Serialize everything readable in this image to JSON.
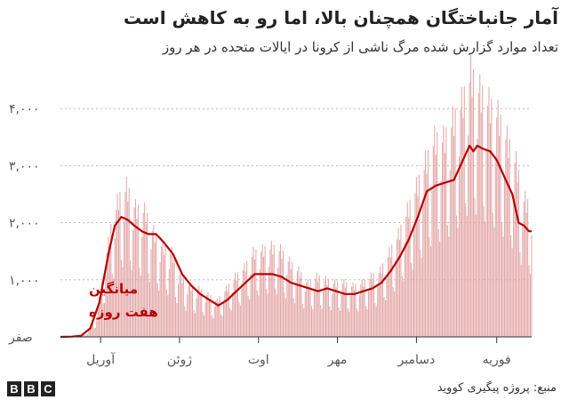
{
  "header": {
    "title": "آمار جانباختگان همچنان بالا، اما رو به کاهش است",
    "subtitle": "تعداد موارد گزارش شده مرگ ناشی از کرونا در ایالات متحده در هر روز"
  },
  "footer": {
    "source": "منبع: پروژه پیگیری کووید",
    "logo_letters": [
      "B",
      "B",
      "C"
    ]
  },
  "colors": {
    "bar": "#e4a8a8",
    "line": "#b80000",
    "grid": "#bbbbbb",
    "axis": "#333333",
    "annotation": "#b80000"
  },
  "chart_data": {
    "type": "bar",
    "title": "آمار جانباختگان همچنان بالا، اما رو به کاهش است",
    "subtitle": "تعداد موارد گزارش شده مرگ ناشی از کرونا در ایالات متحده در هر روز",
    "x_range": [
      "2020-03-01",
      "2021-02-28"
    ],
    "ylim": [
      0,
      4500
    ],
    "grid": true,
    "y_ticks": [
      {
        "value": 0,
        "label": "صفر"
      },
      {
        "value": 1000,
        "label": "۱,۰۰۰"
      },
      {
        "value": 2000,
        "label": "۲,۰۰۰"
      },
      {
        "value": 3000,
        "label": "۳,۰۰۰"
      },
      {
        "value": 4000,
        "label": "۴,۰۰۰"
      }
    ],
    "x_ticks": [
      {
        "date": "2020-04-01",
        "label": "آوریل"
      },
      {
        "date": "2020-06-01",
        "label": "ژوئن"
      },
      {
        "date": "2020-08-01",
        "label": "اوت"
      },
      {
        "date": "2020-10-01",
        "label": "مهر"
      },
      {
        "date": "2020-12-01",
        "label": "دسامبر"
      },
      {
        "date": "2021-02-01",
        "label": "فوریه"
      }
    ],
    "annotation": {
      "lines": [
        "میانگین",
        "هفت روزه"
      ],
      "series": "seven_day_average"
    },
    "series": [
      {
        "key": "daily",
        "kind": "bar",
        "points": [
          [
            "2020-03-01",
            0
          ],
          [
            "2020-03-15",
            10
          ],
          [
            "2020-03-22",
            60
          ],
          [
            "2020-03-29",
            350
          ],
          [
            "2020-04-05",
            1300
          ],
          [
            "2020-04-10",
            1950
          ],
          [
            "2020-04-15",
            2300
          ],
          [
            "2020-04-21",
            2500
          ],
          [
            "2020-04-28",
            2150
          ],
          [
            "2020-05-05",
            2100
          ],
          [
            "2020-05-12",
            1750
          ],
          [
            "2020-05-19",
            1500
          ],
          [
            "2020-05-26",
            1400
          ],
          [
            "2020-06-02",
            1000
          ],
          [
            "2020-06-09",
            850
          ],
          [
            "2020-06-16",
            800
          ],
          [
            "2020-06-23",
            700
          ],
          [
            "2020-06-30",
            600
          ],
          [
            "2020-07-07",
            800
          ],
          [
            "2020-07-14",
            1000
          ],
          [
            "2020-07-21",
            1150
          ],
          [
            "2020-07-28",
            1400
          ],
          [
            "2020-08-04",
            1450
          ],
          [
            "2020-08-11",
            1500
          ],
          [
            "2020-08-18",
            1450
          ],
          [
            "2020-08-25",
            1250
          ],
          [
            "2020-09-01",
            1100
          ],
          [
            "2020-09-08",
            900
          ],
          [
            "2020-09-15",
            1000
          ],
          [
            "2020-09-22",
            950
          ],
          [
            "2020-09-29",
            900
          ],
          [
            "2020-10-06",
            900
          ],
          [
            "2020-10-13",
            850
          ],
          [
            "2020-10-20",
            900
          ],
          [
            "2020-10-27",
            1000
          ],
          [
            "2020-11-03",
            1100
          ],
          [
            "2020-11-10",
            1400
          ],
          [
            "2020-11-17",
            1700
          ],
          [
            "2020-11-24",
            2100
          ],
          [
            "2020-12-01",
            2500
          ],
          [
            "2020-12-08",
            2900
          ],
          [
            "2020-12-15",
            3300
          ],
          [
            "2020-12-22",
            3300
          ],
          [
            "2020-12-29",
            3600
          ],
          [
            "2021-01-05",
            3900
          ],
          [
            "2021-01-12",
            4400
          ],
          [
            "2021-01-19",
            4100
          ],
          [
            "2021-01-26",
            3900
          ],
          [
            "2021-02-02",
            3700
          ],
          [
            "2021-02-09",
            3300
          ],
          [
            "2021-02-16",
            2900
          ],
          [
            "2021-02-22",
            2300
          ],
          [
            "2021-02-28",
            2150
          ]
        ]
      },
      {
        "key": "seven_day_average",
        "kind": "line",
        "points": [
          [
            "2020-03-01",
            0
          ],
          [
            "2020-03-10",
            5
          ],
          [
            "2020-03-17",
            20
          ],
          [
            "2020-03-24",
            150
          ],
          [
            "2020-03-31",
            600
          ],
          [
            "2020-04-07",
            1450
          ],
          [
            "2020-04-12",
            1950
          ],
          [
            "2020-04-17",
            2100
          ],
          [
            "2020-04-22",
            2050
          ],
          [
            "2020-04-27",
            1950
          ],
          [
            "2020-05-03",
            1850
          ],
          [
            "2020-05-08",
            1800
          ],
          [
            "2020-05-14",
            1800
          ],
          [
            "2020-05-20",
            1650
          ],
          [
            "2020-05-27",
            1450
          ],
          [
            "2020-06-03",
            1100
          ],
          [
            "2020-06-10",
            900
          ],
          [
            "2020-06-17",
            750
          ],
          [
            "2020-06-24",
            650
          ],
          [
            "2020-07-01",
            550
          ],
          [
            "2020-07-08",
            650
          ],
          [
            "2020-07-15",
            800
          ],
          [
            "2020-07-22",
            950
          ],
          [
            "2020-07-29",
            1100
          ],
          [
            "2020-08-05",
            1100
          ],
          [
            "2020-08-12",
            1100
          ],
          [
            "2020-08-19",
            1050
          ],
          [
            "2020-08-26",
            950
          ],
          [
            "2020-09-02",
            900
          ],
          [
            "2020-09-09",
            850
          ],
          [
            "2020-09-16",
            800
          ],
          [
            "2020-09-23",
            850
          ],
          [
            "2020-09-30",
            800
          ],
          [
            "2020-10-07",
            750
          ],
          [
            "2020-10-14",
            750
          ],
          [
            "2020-10-21",
            800
          ],
          [
            "2020-10-28",
            850
          ],
          [
            "2020-11-04",
            950
          ],
          [
            "2020-11-11",
            1150
          ],
          [
            "2020-11-18",
            1400
          ],
          [
            "2020-11-25",
            1700
          ],
          [
            "2020-12-02",
            2100
          ],
          [
            "2020-12-09",
            2550
          ],
          [
            "2020-12-16",
            2650
          ],
          [
            "2020-12-23",
            2700
          ],
          [
            "2020-12-30",
            2750
          ],
          [
            "2021-01-06",
            3100
          ],
          [
            "2021-01-11",
            3350
          ],
          [
            "2021-01-14",
            3250
          ],
          [
            "2021-01-17",
            3350
          ],
          [
            "2021-01-21",
            3300
          ],
          [
            "2021-01-27",
            3250
          ],
          [
            "2021-02-01",
            3100
          ],
          [
            "2021-02-07",
            2800
          ],
          [
            "2021-02-13",
            2500
          ],
          [
            "2021-02-18",
            2000
          ],
          [
            "2021-02-22",
            1950
          ],
          [
            "2021-02-26",
            1850
          ],
          [
            "2021-02-28",
            1850
          ]
        ]
      }
    ]
  }
}
